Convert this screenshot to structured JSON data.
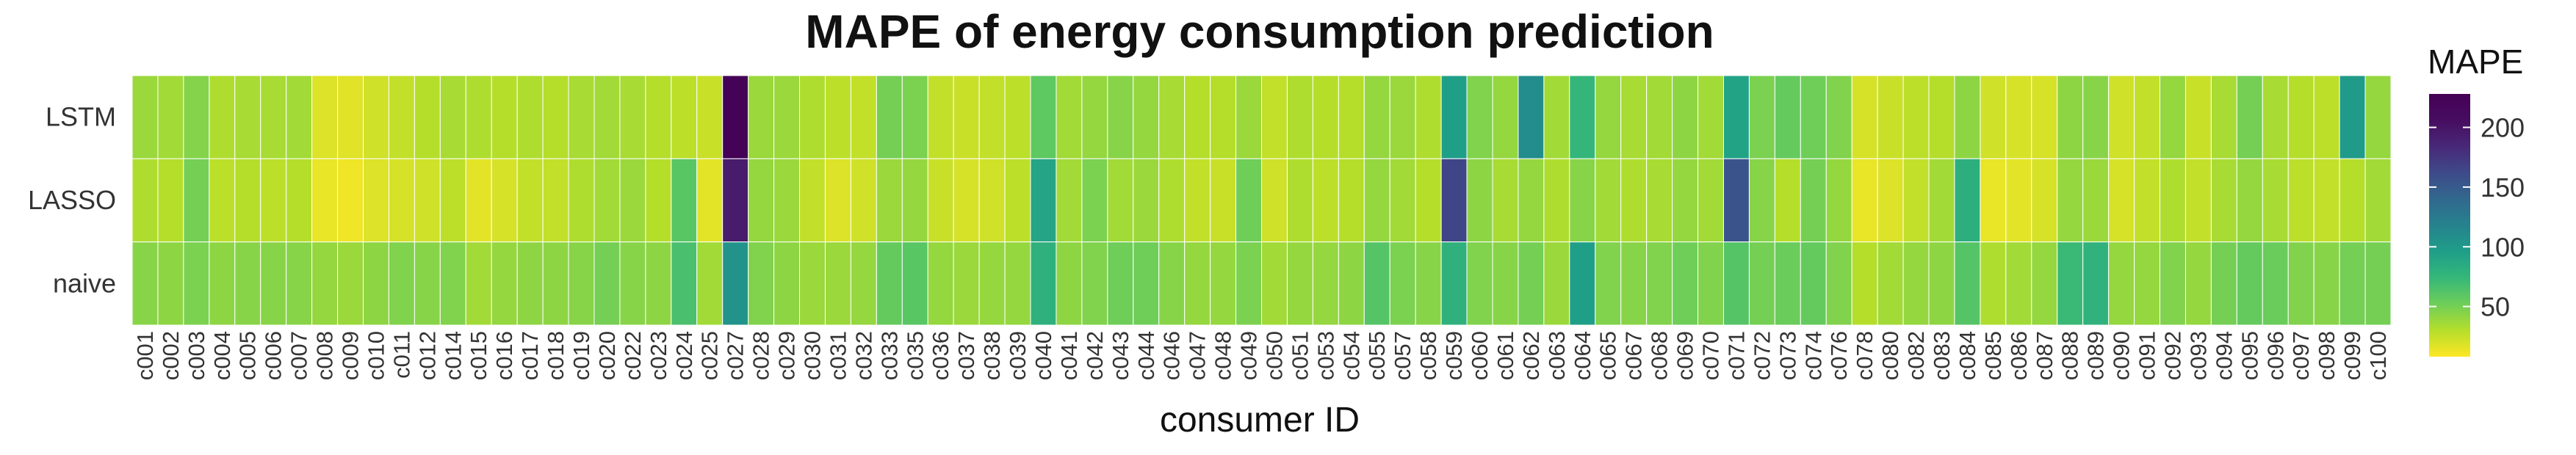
{
  "chart_data": {
    "type": "heatmap",
    "title": "MAPE of energy consumption prediction",
    "xlabel": "consumer ID",
    "ylabel": "",
    "rows": [
      "LSTM",
      "LASSO",
      "naive"
    ],
    "columns": [
      "c001",
      "c002",
      "c003",
      "c004",
      "c005",
      "c006",
      "c007",
      "c008",
      "c009",
      "c010",
      "c011",
      "c012",
      "c014",
      "c015",
      "c016",
      "c017",
      "c018",
      "c019",
      "c020",
      "c022",
      "c023",
      "c024",
      "c025",
      "c027",
      "c028",
      "c029",
      "c030",
      "c031",
      "c032",
      "c033",
      "c035",
      "c036",
      "c037",
      "c038",
      "c039",
      "c040",
      "c041",
      "c042",
      "c043",
      "c044",
      "c046",
      "c047",
      "c048",
      "c049",
      "c050",
      "c051",
      "c053",
      "c054",
      "c055",
      "c057",
      "c058",
      "c059",
      "c060",
      "c061",
      "c062",
      "c063",
      "c064",
      "c065",
      "c067",
      "c068",
      "c069",
      "c070",
      "c071",
      "c072",
      "c073",
      "c074",
      "c076",
      "c078",
      "c080",
      "c082",
      "c083",
      "c084",
      "c085",
      "c086",
      "c087",
      "c088",
      "c089",
      "c090",
      "c091",
      "c092",
      "c093",
      "c094",
      "c095",
      "c096",
      "c097",
      "c098",
      "c099",
      "c100"
    ],
    "values": [
      [
        38,
        36,
        45,
        32,
        34,
        34,
        36,
        18,
        17,
        22,
        26,
        30,
        34,
        32,
        30,
        32,
        30,
        34,
        36,
        34,
        30,
        28,
        24,
        225,
        38,
        38,
        32,
        28,
        26,
        50,
        48,
        26,
        24,
        26,
        28,
        58,
        36,
        40,
        44,
        40,
        34,
        30,
        30,
        38,
        26,
        32,
        30,
        30,
        40,
        38,
        32,
        95,
        46,
        40,
        110,
        36,
        75,
        40,
        34,
        36,
        42,
        36,
        92,
        48,
        56,
        52,
        46,
        20,
        24,
        28,
        30,
        42,
        22,
        20,
        20,
        42,
        44,
        22,
        26,
        40,
        24,
        34,
        50,
        34,
        30,
        28,
        98,
        40
      ],
      [
        32,
        30,
        50,
        28,
        30,
        28,
        30,
        14,
        12,
        18,
        20,
        22,
        28,
        16,
        20,
        26,
        26,
        32,
        36,
        38,
        30,
        60,
        16,
        195,
        40,
        38,
        26,
        18,
        22,
        38,
        40,
        24,
        20,
        22,
        28,
        90,
        36,
        48,
        36,
        38,
        32,
        26,
        24,
        52,
        22,
        32,
        28,
        30,
        40,
        36,
        30,
        165,
        42,
        34,
        40,
        32,
        44,
        36,
        32,
        34,
        40,
        36,
        155,
        44,
        30,
        50,
        40,
        14,
        18,
        26,
        36,
        82,
        14,
        16,
        20,
        40,
        38,
        20,
        26,
        32,
        26,
        34,
        40,
        34,
        28,
        26,
        30,
        36
      ],
      [
        44,
        42,
        48,
        42,
        44,
        44,
        44,
        40,
        38,
        42,
        46,
        44,
        46,
        36,
        40,
        42,
        42,
        44,
        50,
        44,
        42,
        66,
        36,
        105,
        46,
        42,
        38,
        38,
        40,
        56,
        60,
        40,
        38,
        40,
        40,
        80,
        42,
        46,
        52,
        52,
        44,
        40,
        40,
        48,
        36,
        40,
        40,
        42,
        62,
        48,
        44,
        80,
        46,
        44,
        50,
        38,
        95,
        46,
        44,
        46,
        52,
        46,
        62,
        50,
        54,
        56,
        46,
        30,
        36,
        40,
        42,
        62,
        32,
        36,
        40,
        72,
        78,
        40,
        40,
        46,
        40,
        50,
        56,
        54,
        46,
        44,
        50,
        50
      ]
    ],
    "colorbar": {
      "title": "MAPE",
      "min": 8,
      "max": 228,
      "ticks": [
        50,
        100,
        150,
        200
      ],
      "colormap": "viridis (reversed: low = yellow, high = dark purple)"
    },
    "grid": false,
    "legend_position": "right"
  }
}
